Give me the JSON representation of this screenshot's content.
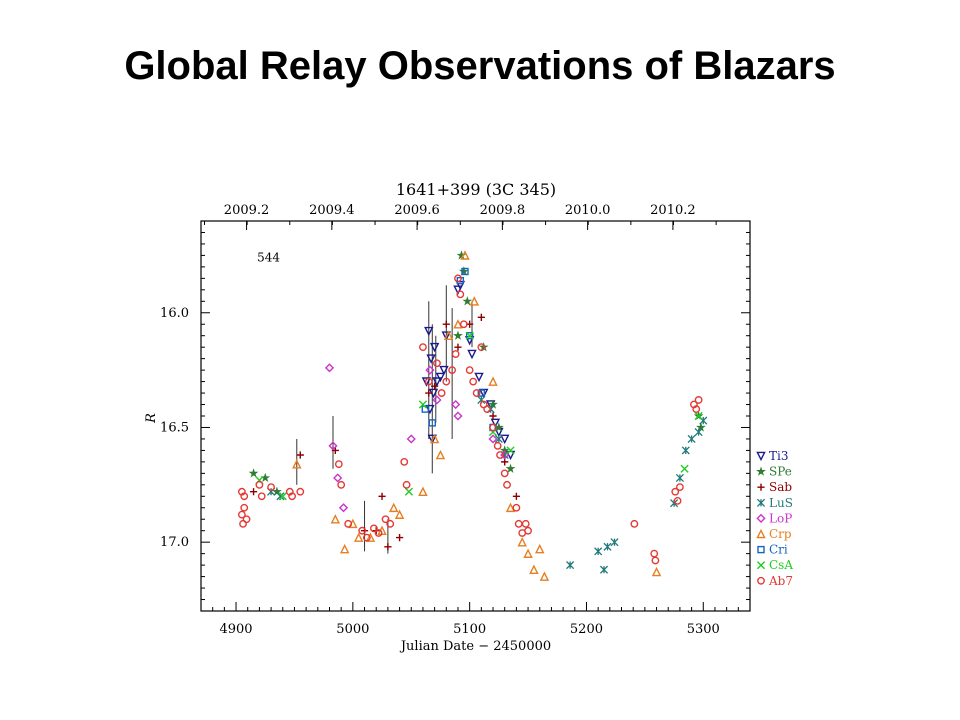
{
  "slide": {
    "title": "Global Relay Observations of Blazars"
  },
  "chart_data": {
    "type": "scatter",
    "title": "1641+399 (3C 345)",
    "xlabel": "Julian Date − 2450000",
    "ylabel": "R",
    "xlim": [
      4870,
      5340
    ],
    "ylim": [
      17.3,
      15.6
    ],
    "y_inverted": true,
    "x_ticks": [
      4900,
      5000,
      5100,
      5200,
      5300
    ],
    "x_tick_labels": [
      "4900",
      "5000",
      "5100",
      "5200",
      "5300"
    ],
    "y_ticks": [
      16.0,
      16.5,
      17.0
    ],
    "y_tick_labels": [
      "16.0",
      "16.5",
      "17.0"
    ],
    "top_axis_ticks": [
      {
        "x": 4909,
        "label": "2009.2"
      },
      {
        "x": 4982,
        "label": "2009.4"
      },
      {
        "x": 5055,
        "label": "2009.6"
      },
      {
        "x": 5128,
        "label": "2009.8"
      },
      {
        "x": 5201,
        "label": "2010.0"
      },
      {
        "x": 5274,
        "label": "2010.2"
      }
    ],
    "annotations": [
      {
        "x": 4918,
        "y": 15.76,
        "text": "544"
      }
    ],
    "legend_position": "outside-right",
    "series": [
      {
        "name": "Ti3",
        "marker": "triangle-down",
        "color": "#1a1a8c",
        "points": [
          [
            5063,
            16.3
          ],
          [
            5065,
            16.08
          ],
          [
            5066,
            16.42
          ],
          [
            5067,
            16.2
          ],
          [
            5068,
            16.55
          ],
          [
            5069,
            16.35
          ],
          [
            5070,
            16.15
          ],
          [
            5072,
            16.3
          ],
          [
            5075,
            16.28
          ],
          [
            5078,
            16.25
          ],
          [
            5080,
            16.1
          ],
          [
            5090,
            15.9
          ],
          [
            5092,
            15.88
          ],
          [
            5100,
            16.12
          ],
          [
            5102,
            16.18
          ],
          [
            5108,
            16.28
          ],
          [
            5112,
            16.35
          ],
          [
            5118,
            16.4
          ],
          [
            5122,
            16.48
          ],
          [
            5125,
            16.52
          ],
          [
            5130,
            16.55
          ],
          [
            5135,
            16.62
          ]
        ]
      },
      {
        "name": "SPe",
        "marker": "star",
        "color": "#2e7d32",
        "points": [
          [
            4915,
            16.7
          ],
          [
            4925,
            16.72
          ],
          [
            4935,
            16.78
          ],
          [
            5090,
            16.1
          ],
          [
            5093,
            15.75
          ],
          [
            5095,
            15.82
          ],
          [
            5098,
            15.95
          ],
          [
            5112,
            16.15
          ],
          [
            5120,
            16.4
          ],
          [
            5125,
            16.5
          ],
          [
            5130,
            16.6
          ],
          [
            5135,
            16.68
          ],
          [
            5296,
            16.45
          ],
          [
            5298,
            16.5
          ]
        ]
      },
      {
        "name": "Sab",
        "marker": "plus",
        "color": "#8b0000",
        "points": [
          [
            4915,
            16.78
          ],
          [
            4955,
            16.62
          ],
          [
            4985,
            16.6
          ],
          [
            5010,
            16.95
          ],
          [
            5020,
            16.95
          ],
          [
            5025,
            16.8
          ],
          [
            5030,
            17.02
          ],
          [
            5040,
            16.98
          ],
          [
            5065,
            16.35
          ],
          [
            5070,
            16.32
          ],
          [
            5080,
            16.05
          ],
          [
            5090,
            16.15
          ],
          [
            5100,
            16.05
          ],
          [
            5110,
            16.02
          ],
          [
            5120,
            16.45
          ],
          [
            5130,
            16.65
          ],
          [
            5140,
            16.8
          ]
        ]
      },
      {
        "name": "LuS",
        "marker": "asterisk",
        "color": "#1f7a7a",
        "points": [
          [
            4930,
            16.78
          ],
          [
            4938,
            16.8
          ],
          [
            5110,
            16.38
          ],
          [
            5118,
            16.42
          ],
          [
            5125,
            16.55
          ],
          [
            5130,
            16.62
          ],
          [
            5186,
            17.1
          ],
          [
            5210,
            17.04
          ],
          [
            5215,
            17.12
          ],
          [
            5218,
            17.02
          ],
          [
            5224,
            17.0
          ],
          [
            5275,
            16.83
          ],
          [
            5280,
            16.72
          ],
          [
            5285,
            16.6
          ],
          [
            5290,
            16.55
          ],
          [
            5296,
            16.52
          ],
          [
            5300,
            16.47
          ]
        ]
      },
      {
        "name": "LoP",
        "marker": "diamond",
        "color": "#cc33cc",
        "points": [
          [
            4980,
            16.24
          ],
          [
            4983,
            16.58
          ],
          [
            4987,
            16.72
          ],
          [
            4992,
            16.85
          ],
          [
            5050,
            16.55
          ],
          [
            5066,
            16.25
          ],
          [
            5072,
            16.38
          ],
          [
            5088,
            16.4
          ],
          [
            5090,
            16.45
          ],
          [
            5120,
            16.55
          ],
          [
            5130,
            16.62
          ]
        ]
      },
      {
        "name": "Crp",
        "marker": "triangle-up",
        "color": "#e67e22",
        "points": [
          [
            4952,
            16.66
          ],
          [
            4985,
            16.9
          ],
          [
            4993,
            17.03
          ],
          [
            5000,
            16.92
          ],
          [
            5005,
            16.98
          ],
          [
            5015,
            16.98
          ],
          [
            5025,
            16.95
          ],
          [
            5035,
            16.85
          ],
          [
            5040,
            16.88
          ],
          [
            5060,
            16.78
          ],
          [
            5070,
            16.55
          ],
          [
            5075,
            16.62
          ],
          [
            5082,
            16.1
          ],
          [
            5090,
            16.05
          ],
          [
            5096,
            15.75
          ],
          [
            5104,
            15.95
          ],
          [
            5120,
            16.3
          ],
          [
            5135,
            16.85
          ],
          [
            5145,
            17.0
          ],
          [
            5150,
            17.05
          ],
          [
            5155,
            17.12
          ],
          [
            5160,
            17.03
          ],
          [
            5164,
            17.15
          ],
          [
            5260,
            17.13
          ]
        ]
      },
      {
        "name": "Cri",
        "marker": "square",
        "color": "#1565c0",
        "points": [
          [
            5062,
            16.42
          ],
          [
            5068,
            16.48
          ],
          [
            5092,
            15.86
          ],
          [
            5096,
            15.82
          ],
          [
            5100,
            16.1
          ],
          [
            5110,
            16.35
          ],
          [
            5120,
            16.5
          ]
        ]
      },
      {
        "name": "CsA",
        "marker": "cross",
        "color": "#22cc22",
        "points": [
          [
            4920,
            16.73
          ],
          [
            4940,
            16.8
          ],
          [
            5048,
            16.78
          ],
          [
            5060,
            16.4
          ],
          [
            5100,
            16.1
          ],
          [
            5120,
            16.52
          ],
          [
            5135,
            16.6
          ],
          [
            5284,
            16.68
          ],
          [
            5296,
            16.45
          ]
        ]
      },
      {
        "name": "Ab7",
        "marker": "circle",
        "color": "#e53935",
        "points": [
          [
            4905,
            16.78
          ],
          [
            4905,
            16.88
          ],
          [
            4906,
            16.92
          ],
          [
            4907,
            16.8
          ],
          [
            4907,
            16.85
          ],
          [
            4909,
            16.9
          ],
          [
            4920,
            16.75
          ],
          [
            4922,
            16.8
          ],
          [
            4930,
            16.76
          ],
          [
            4946,
            16.78
          ],
          [
            4948,
            16.8
          ],
          [
            4955,
            16.78
          ],
          [
            4988,
            16.66
          ],
          [
            4990,
            16.75
          ],
          [
            4996,
            16.92
          ],
          [
            5008,
            16.95
          ],
          [
            5012,
            16.98
          ],
          [
            5018,
            16.94
          ],
          [
            5022,
            16.96
          ],
          [
            5028,
            16.9
          ],
          [
            5032,
            16.92
          ],
          [
            5044,
            16.65
          ],
          [
            5046,
            16.75
          ],
          [
            5060,
            16.15
          ],
          [
            5065,
            16.3
          ],
          [
            5072,
            16.22
          ],
          [
            5076,
            16.35
          ],
          [
            5080,
            16.3
          ],
          [
            5085,
            16.25
          ],
          [
            5088,
            16.18
          ],
          [
            5090,
            15.85
          ],
          [
            5092,
            15.92
          ],
          [
            5095,
            16.05
          ],
          [
            5100,
            16.25
          ],
          [
            5103,
            16.3
          ],
          [
            5106,
            16.35
          ],
          [
            5110,
            16.15
          ],
          [
            5112,
            16.4
          ],
          [
            5115,
            16.42
          ],
          [
            5120,
            16.5
          ],
          [
            5124,
            16.58
          ],
          [
            5126,
            16.62
          ],
          [
            5130,
            16.7
          ],
          [
            5132,
            16.75
          ],
          [
            5140,
            16.85
          ],
          [
            5142,
            16.92
          ],
          [
            5145,
            16.96
          ],
          [
            5148,
            16.92
          ],
          [
            5150,
            16.95
          ],
          [
            5241,
            16.92
          ],
          [
            5258,
            17.05
          ],
          [
            5259,
            17.08
          ],
          [
            5276,
            16.78
          ],
          [
            5278,
            16.82
          ],
          [
            5280,
            16.76
          ],
          [
            5292,
            16.4
          ],
          [
            5294,
            16.42
          ],
          [
            5296,
            16.38
          ]
        ]
      }
    ],
    "error_bars": [
      {
        "x": 4952,
        "y1": 16.55,
        "y2": 16.75
      },
      {
        "x": 4983,
        "y1": 16.45,
        "y2": 16.68
      },
      {
        "x": 5010,
        "y1": 16.82,
        "y2": 17.04
      },
      {
        "x": 5030,
        "y1": 16.9,
        "y2": 17.05
      },
      {
        "x": 5065,
        "y1": 15.95,
        "y2": 16.55
      },
      {
        "x": 5068,
        "y1": 16.05,
        "y2": 16.7
      },
      {
        "x": 5071,
        "y1": 16.1,
        "y2": 16.48
      },
      {
        "x": 5080,
        "y1": 15.88,
        "y2": 16.3
      },
      {
        "x": 5085,
        "y1": 15.98,
        "y2": 16.55
      },
      {
        "x": 5102,
        "y1": 15.95,
        "y2": 16.15
      }
    ]
  }
}
